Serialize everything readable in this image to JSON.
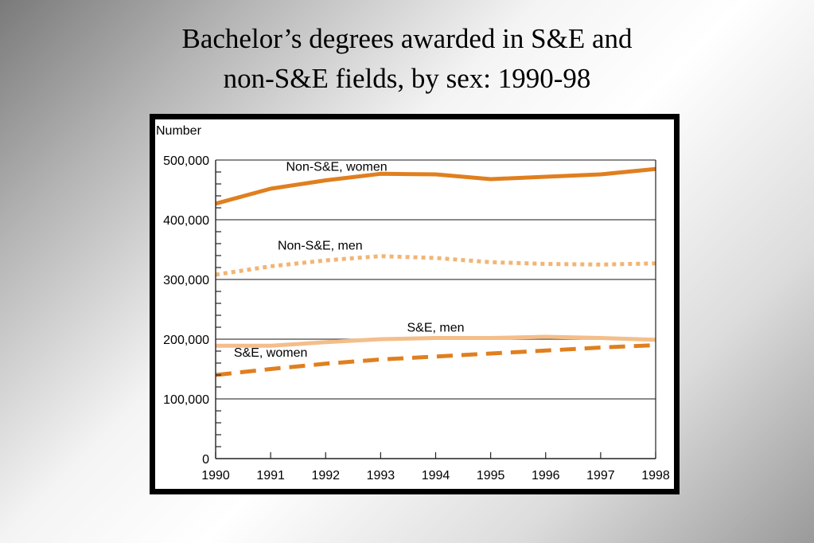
{
  "slide": {
    "title_line1": "Bachelor’s degrees awarded in S&E and",
    "title_line2": "non-S&E fields, by sex: 1990-98"
  },
  "chart_data": {
    "type": "line",
    "title": "",
    "xlabel": "",
    "ylabel": "Number",
    "x": [
      1990,
      1991,
      1992,
      1993,
      1994,
      1995,
      1996,
      1997,
      1998
    ],
    "x_tick_labels": [
      "1990",
      "1991",
      "1992",
      "1993",
      "1994",
      "1995",
      "1996",
      "1997",
      "1998"
    ],
    "ylim": [
      0,
      500000
    ],
    "y_ticks": [
      0,
      100000,
      200000,
      300000,
      400000,
      500000
    ],
    "y_tick_labels": [
      "0",
      "100,000",
      "200,000",
      "300,000",
      "400,000",
      "500,000"
    ],
    "grid": "horizontal",
    "legend": "inline-labels",
    "series": [
      {
        "name": "Non-S&E, women",
        "style": "solid",
        "color": "#e07f1f",
        "values": [
          427000,
          452000,
          466000,
          477000,
          476000,
          468000,
          472000,
          476000,
          485000
        ],
        "label_anchor": [
          1992.2,
          482000
        ]
      },
      {
        "name": "Non-S&E, men",
        "style": "dotted",
        "color": "#f2b575",
        "values": [
          308000,
          322000,
          332000,
          339000,
          336000,
          329000,
          326000,
          325000,
          327000
        ],
        "label_anchor": [
          1991.9,
          350000
        ]
      },
      {
        "name": "S&E, men",
        "style": "solid",
        "color": "#f4be8a",
        "values": [
          189000,
          189000,
          195000,
          200000,
          202000,
          202000,
          204000,
          202000,
          199000
        ],
        "label_anchor": [
          1994.0,
          213000
        ]
      },
      {
        "name": "S&E, women",
        "style": "dashed",
        "color": "#e07f1f",
        "values": [
          140000,
          150000,
          159000,
          166000,
          171000,
          176000,
          181000,
          186000,
          190000
        ],
        "label_anchor": [
          1991.0,
          171000
        ]
      }
    ]
  }
}
